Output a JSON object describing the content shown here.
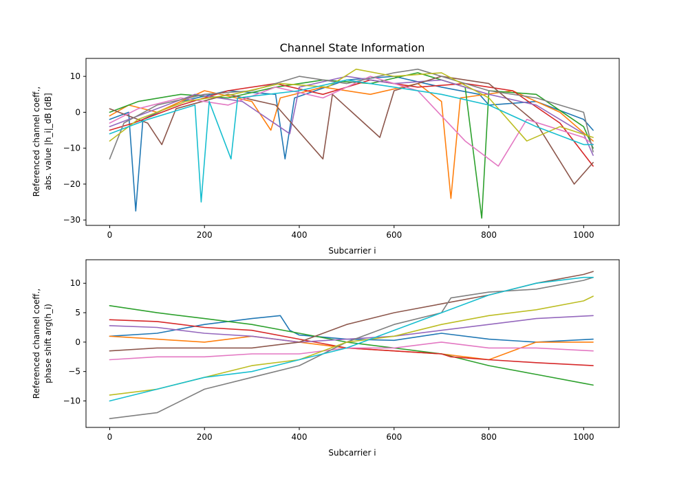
{
  "chart_data": [
    {
      "type": "line",
      "title": "Channel State Information",
      "xlabel": "Subcarrier i",
      "ylabel_line1": "Referenced channel coeff.,",
      "ylabel_line2": "abs. value |h_i|_dB [dB]",
      "xlim": [
        -50,
        1075
      ],
      "ylim": [
        -31.5,
        15
      ],
      "xticks": [
        0,
        200,
        400,
        600,
        800,
        1000
      ],
      "yticks": [
        -30,
        -20,
        -10,
        0,
        10
      ],
      "colors": [
        "#1f77b4",
        "#ff7f0e",
        "#2ca02c",
        "#d62728",
        "#9467bd",
        "#8c564b",
        "#e377c2",
        "#7f7f7f",
        "#bcbd22",
        "#17becf"
      ],
      "series": [
        {
          "values": [
            [
              0,
              -2
            ],
            [
              40,
              0
            ],
            [
              55,
              -27.5
            ],
            [
              70,
              -2
            ],
            [
              150,
              3
            ],
            [
              250,
              6
            ],
            [
              350,
              5
            ],
            [
              370,
              -13
            ],
            [
              390,
              4
            ],
            [
              500,
              9
            ],
            [
              600,
              10
            ],
            [
              700,
              7
            ],
            [
              780,
              5
            ],
            [
              800,
              2
            ],
            [
              900,
              3
            ],
            [
              1000,
              -2
            ],
            [
              1020,
              -5
            ]
          ]
        },
        {
          "values": [
            [
              0,
              -1
            ],
            [
              40,
              2
            ],
            [
              100,
              0
            ],
            [
              200,
              6
            ],
            [
              300,
              3
            ],
            [
              340,
              -5
            ],
            [
              360,
              4
            ],
            [
              450,
              7
            ],
            [
              550,
              5
            ],
            [
              650,
              8
            ],
            [
              700,
              3
            ],
            [
              720,
              -24
            ],
            [
              740,
              4
            ],
            [
              850,
              6
            ],
            [
              950,
              0
            ],
            [
              1020,
              -8
            ]
          ]
        },
        {
          "values": [
            [
              0,
              0
            ],
            [
              60,
              3
            ],
            [
              150,
              5
            ],
            [
              250,
              4
            ],
            [
              350,
              7
            ],
            [
              450,
              9
            ],
            [
              550,
              8
            ],
            [
              650,
              11
            ],
            [
              750,
              7
            ],
            [
              785,
              -29.5
            ],
            [
              800,
              6
            ],
            [
              900,
              5
            ],
            [
              1000,
              -4
            ],
            [
              1020,
              -10
            ]
          ]
        },
        {
          "values": [
            [
              0,
              -5
            ],
            [
              50,
              -3
            ],
            [
              150,
              2
            ],
            [
              250,
              6
            ],
            [
              350,
              8
            ],
            [
              450,
              5
            ],
            [
              550,
              9
            ],
            [
              650,
              7
            ],
            [
              750,
              8
            ],
            [
              850,
              6
            ],
            [
              950,
              -3
            ],
            [
              1020,
              -15
            ]
          ]
        },
        {
          "values": [
            [
              0,
              -4
            ],
            [
              80,
              0
            ],
            [
              180,
              5
            ],
            [
              280,
              3
            ],
            [
              380,
              -6
            ],
            [
              400,
              7
            ],
            [
              500,
              10
            ],
            [
              600,
              8
            ],
            [
              700,
              9
            ],
            [
              800,
              5
            ],
            [
              900,
              2
            ],
            [
              1000,
              -6
            ],
            [
              1020,
              -12
            ]
          ]
        },
        {
          "values": [
            [
              0,
              1
            ],
            [
              80,
              -3
            ],
            [
              110,
              -9
            ],
            [
              140,
              1
            ],
            [
              250,
              5
            ],
            [
              350,
              2
            ],
            [
              450,
              -13
            ],
            [
              470,
              5
            ],
            [
              570,
              -7
            ],
            [
              600,
              6
            ],
            [
              700,
              10
            ],
            [
              800,
              8
            ],
            [
              900,
              -3
            ],
            [
              980,
              -20
            ],
            [
              1020,
              -14
            ]
          ]
        },
        {
          "values": [
            [
              0,
              -3
            ],
            [
              60,
              1
            ],
            [
              150,
              4
            ],
            [
              250,
              2
            ],
            [
              350,
              7
            ],
            [
              450,
              4
            ],
            [
              550,
              10
            ],
            [
              650,
              6
            ],
            [
              750,
              -8
            ],
            [
              820,
              -15
            ],
            [
              880,
              -2
            ],
            [
              1000,
              -7
            ],
            [
              1020,
              -9
            ]
          ]
        },
        {
          "values": [
            [
              0,
              -13
            ],
            [
              30,
              -3
            ],
            [
              100,
              2
            ],
            [
              200,
              5
            ],
            [
              300,
              6
            ],
            [
              400,
              10
            ],
            [
              500,
              8
            ],
            [
              600,
              11
            ],
            [
              650,
              12
            ],
            [
              700,
              10
            ],
            [
              800,
              6
            ],
            [
              900,
              4
            ],
            [
              1000,
              0
            ],
            [
              1020,
              -11
            ]
          ]
        },
        {
          "values": [
            [
              0,
              -8
            ],
            [
              60,
              -2
            ],
            [
              160,
              3
            ],
            [
              260,
              5
            ],
            [
              360,
              8
            ],
            [
              460,
              7
            ],
            [
              520,
              12
            ],
            [
              600,
              10
            ],
            [
              700,
              11
            ],
            [
              800,
              4
            ],
            [
              880,
              -8
            ],
            [
              950,
              -4
            ],
            [
              1020,
              -7
            ]
          ]
        },
        {
          "values": [
            [
              0,
              -6
            ],
            [
              80,
              -2
            ],
            [
              180,
              2
            ],
            [
              193,
              -25
            ],
            [
              210,
              3
            ],
            [
              256,
              -13
            ],
            [
              270,
              4
            ],
            [
              400,
              6
            ],
            [
              500,
              9
            ],
            [
              600,
              7
            ],
            [
              700,
              5
            ],
            [
              800,
              2
            ],
            [
              900,
              -4
            ],
            [
              1000,
              -9
            ],
            [
              1020,
              -9
            ]
          ]
        }
      ]
    },
    {
      "type": "line",
      "title": "",
      "xlabel": "Subcarrier i",
      "ylabel_line1": "Referenced channel coeff.,",
      "ylabel_line2": "phase shift arg(h_i)",
      "xlim": [
        -50,
        1075
      ],
      "ylim": [
        -14.5,
        14
      ],
      "xticks": [
        0,
        200,
        400,
        600,
        800,
        1000
      ],
      "yticks": [
        -10,
        -5,
        0,
        5,
        10
      ],
      "colors": [
        "#1f77b4",
        "#ff7f0e",
        "#2ca02c",
        "#d62728",
        "#9467bd",
        "#8c564b",
        "#e377c2",
        "#7f7f7f",
        "#bcbd22",
        "#17becf"
      ],
      "series": [
        {
          "values": [
            [
              0,
              1
            ],
            [
              100,
              1.5
            ],
            [
              200,
              3
            ],
            [
              300,
              4
            ],
            [
              360,
              4.5
            ],
            [
              380,
              2
            ],
            [
              400,
              1.2
            ],
            [
              500,
              0.5
            ],
            [
              600,
              0.3
            ],
            [
              700,
              1.5
            ],
            [
              800,
              0.5
            ],
            [
              900,
              0
            ],
            [
              1020,
              0.5
            ]
          ]
        },
        {
          "values": [
            [
              0,
              1
            ],
            [
              100,
              0.5
            ],
            [
              200,
              0
            ],
            [
              300,
              1
            ],
            [
              400,
              0
            ],
            [
              500,
              -1
            ],
            [
              600,
              -1.5
            ],
            [
              700,
              -2
            ],
            [
              800,
              -3
            ],
            [
              900,
              0
            ],
            [
              1020,
              0
            ]
          ]
        },
        {
          "values": [
            [
              0,
              6.2
            ],
            [
              100,
              5
            ],
            [
              200,
              4
            ],
            [
              300,
              3
            ],
            [
              400,
              1.5
            ],
            [
              500,
              0
            ],
            [
              600,
              -1
            ],
            [
              700,
              -2
            ],
            [
              800,
              -4
            ],
            [
              900,
              -5.5
            ],
            [
              1000,
              -7
            ],
            [
              1020,
              -7.3
            ]
          ]
        },
        {
          "values": [
            [
              0,
              3.8
            ],
            [
              100,
              3.5
            ],
            [
              200,
              2.5
            ],
            [
              300,
              2
            ],
            [
              400,
              0.5
            ],
            [
              500,
              -1
            ],
            [
              600,
              -1.5
            ],
            [
              700,
              -2
            ],
            [
              720,
              -2.5
            ],
            [
              800,
              -3
            ],
            [
              900,
              -3.5
            ],
            [
              1020,
              -4
            ]
          ]
        },
        {
          "values": [
            [
              0,
              2.8
            ],
            [
              100,
              2.5
            ],
            [
              200,
              1.5
            ],
            [
              300,
              1
            ],
            [
              400,
              0
            ],
            [
              500,
              0.5
            ],
            [
              600,
              1
            ],
            [
              700,
              2
            ],
            [
              800,
              3
            ],
            [
              900,
              4
            ],
            [
              1020,
              4.5
            ]
          ]
        },
        {
          "values": [
            [
              0,
              -1.5
            ],
            [
              100,
              -1
            ],
            [
              200,
              -1
            ],
            [
              300,
              -1
            ],
            [
              400,
              0
            ],
            [
              500,
              3
            ],
            [
              600,
              5
            ],
            [
              700,
              6.5
            ],
            [
              800,
              8
            ],
            [
              900,
              10
            ],
            [
              1000,
              11.5
            ],
            [
              1020,
              12
            ]
          ]
        },
        {
          "values": [
            [
              0,
              -3
            ],
            [
              100,
              -2.5
            ],
            [
              200,
              -2.5
            ],
            [
              300,
              -2
            ],
            [
              400,
              -2
            ],
            [
              500,
              -1
            ],
            [
              600,
              -1
            ],
            [
              700,
              0
            ],
            [
              800,
              -1
            ],
            [
              900,
              -1
            ],
            [
              1020,
              -1.5
            ]
          ]
        },
        {
          "values": [
            [
              0,
              -13
            ],
            [
              100,
              -12
            ],
            [
              200,
              -8
            ],
            [
              300,
              -6
            ],
            [
              400,
              -4
            ],
            [
              500,
              0
            ],
            [
              600,
              3
            ],
            [
              700,
              5
            ],
            [
              720,
              7.5
            ],
            [
              800,
              8.5
            ],
            [
              900,
              9
            ],
            [
              1000,
              10.5
            ],
            [
              1020,
              11
            ]
          ]
        },
        {
          "values": [
            [
              0,
              -9
            ],
            [
              100,
              -8
            ],
            [
              200,
              -6
            ],
            [
              300,
              -4
            ],
            [
              400,
              -3
            ],
            [
              500,
              0
            ],
            [
              600,
              1
            ],
            [
              700,
              3
            ],
            [
              800,
              4.5
            ],
            [
              900,
              5.5
            ],
            [
              1000,
              7
            ],
            [
              1020,
              7.8
            ]
          ]
        },
        {
          "values": [
            [
              0,
              -10
            ],
            [
              100,
              -8
            ],
            [
              200,
              -6
            ],
            [
              300,
              -5
            ],
            [
              400,
              -3
            ],
            [
              500,
              -1
            ],
            [
              600,
              2
            ],
            [
              700,
              5
            ],
            [
              800,
              8
            ],
            [
              900,
              10
            ],
            [
              1000,
              11
            ],
            [
              1020,
              11
            ]
          ]
        }
      ]
    }
  ]
}
